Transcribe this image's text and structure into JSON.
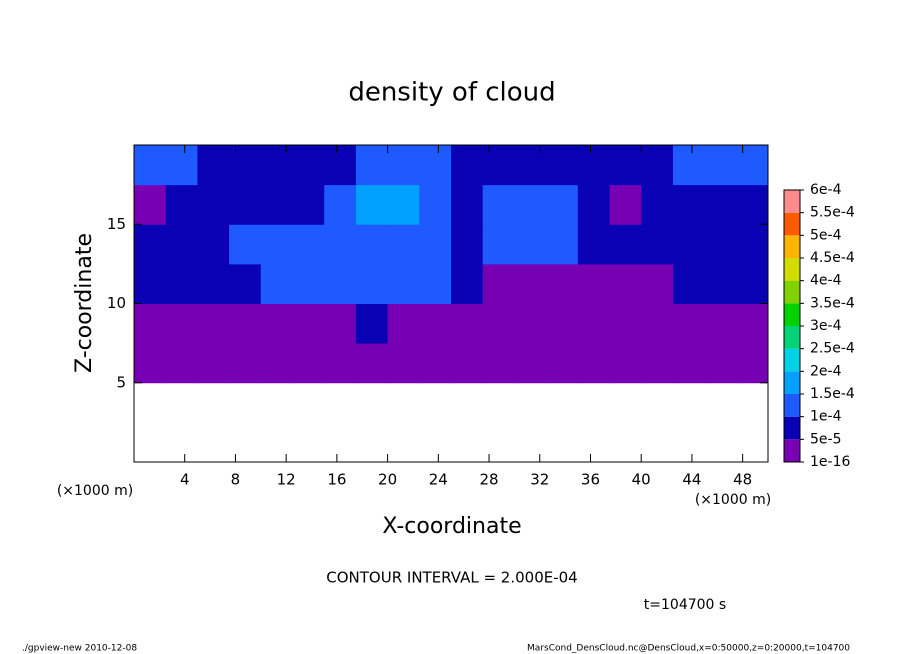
{
  "chart_data": {
    "type": "heatmap",
    "title": "density of cloud",
    "x_label": "X-coordinate",
    "y_label": "Z-coordinate",
    "x_unit": "(×1000 m)",
    "y_unit": "(×1000 m)",
    "xlim": [
      0,
      50
    ],
    "ylim": [
      0,
      20
    ],
    "xticks": [
      4,
      8,
      12,
      16,
      20,
      24,
      28,
      32,
      36,
      40,
      44,
      48
    ],
    "yticks": [
      5,
      10,
      15
    ],
    "x_bins": [
      0,
      2.5,
      5,
      7.5,
      10,
      12.5,
      15,
      17.5,
      20,
      22.5,
      25,
      27.5,
      30,
      32.5,
      35,
      37.5,
      40,
      42.5,
      45,
      47.5,
      50
    ],
    "y_bins": [
      0,
      2.5,
      5,
      7.5,
      10,
      12.5,
      15,
      17.5,
      20
    ],
    "z": [
      [
        null,
        null,
        null,
        null,
        null,
        null,
        null,
        null,
        null,
        null,
        null,
        null,
        null,
        null,
        null,
        null,
        null,
        null,
        null,
        null
      ],
      [
        null,
        null,
        null,
        null,
        null,
        null,
        null,
        null,
        null,
        null,
        null,
        null,
        null,
        null,
        null,
        null,
        null,
        null,
        null,
        null
      ],
      [
        3e-05,
        3e-05,
        3e-05,
        3e-05,
        3e-05,
        3e-05,
        3e-05,
        3e-05,
        3e-05,
        3e-05,
        3e-05,
        3e-05,
        3e-05,
        3e-05,
        3e-05,
        3e-05,
        3e-05,
        3e-05,
        3e-05,
        3e-05
      ],
      [
        3e-05,
        3e-05,
        3e-05,
        3e-05,
        3e-05,
        3e-05,
        3e-05,
        7e-05,
        3e-05,
        3e-05,
        3e-05,
        3e-05,
        3e-05,
        3e-05,
        3e-05,
        3e-05,
        3e-05,
        3e-05,
        3e-05,
        3e-05
      ],
      [
        7e-05,
        7e-05,
        7e-05,
        7e-05,
        0.00012,
        0.00012,
        0.00012,
        0.00012,
        0.00012,
        0.00012,
        7e-05,
        3e-05,
        3e-05,
        3e-05,
        3e-05,
        3e-05,
        3e-05,
        7e-05,
        7e-05,
        7e-05
      ],
      [
        7e-05,
        7e-05,
        7e-05,
        0.00012,
        0.00012,
        0.00012,
        0.00012,
        0.00012,
        0.00012,
        0.00012,
        7e-05,
        0.00012,
        0.00012,
        0.00012,
        7e-05,
        7e-05,
        7e-05,
        7e-05,
        7e-05,
        7e-05
      ],
      [
        3e-05,
        7e-05,
        7e-05,
        7e-05,
        7e-05,
        7e-05,
        0.00012,
        0.00016,
        0.00016,
        0.00012,
        7e-05,
        0.00012,
        0.00012,
        0.00012,
        7e-05,
        3e-05,
        7e-05,
        7e-05,
        7e-05,
        7e-05
      ],
      [
        0.00012,
        0.00012,
        7e-05,
        7e-05,
        7e-05,
        7e-05,
        7e-05,
        0.00012,
        0.00012,
        0.00012,
        7e-05,
        7e-05,
        7e-05,
        7e-05,
        7e-05,
        7e-05,
        7e-05,
        0.00012,
        0.00012,
        0.00012
      ]
    ],
    "colorbar": {
      "ticks": [
        {
          "value": 1e-16,
          "label": "1e-16"
        },
        {
          "value": 5e-05,
          "label": "5e-5"
        },
        {
          "value": 0.0001,
          "label": "1e-4"
        },
        {
          "value": 0.00015,
          "label": "1.5e-4"
        },
        {
          "value": 0.0002,
          "label": "2e-4"
        },
        {
          "value": 0.00025,
          "label": "2.5e-4"
        },
        {
          "value": 0.0003,
          "label": "3e-4"
        },
        {
          "value": 0.00035,
          "label": "3.5e-4"
        },
        {
          "value": 0.0004,
          "label": "4e-4"
        },
        {
          "value": 0.00045,
          "label": "4.5e-4"
        },
        {
          "value": 0.0005,
          "label": "5e-4"
        },
        {
          "value": 0.00055,
          "label": "5.5e-4"
        },
        {
          "value": 0.0006,
          "label": "6e-4"
        }
      ],
      "colors": [
        "#7800b4",
        "#0a00b4",
        "#1e5aff",
        "#00a0ff",
        "#00d2e6",
        "#00d278",
        "#00d200",
        "#82d200",
        "#d2dc00",
        "#ffb400",
        "#ff5a00",
        "#ff8c8c"
      ]
    },
    "contour_interval": "CONTOUR INTERVAL = 2.000E-04",
    "time_label": "t=104700 s",
    "footer_left": "./gpview-new  2010-12-08",
    "footer_right": "MarsCond_DensCloud.nc@DensCloud,x=0:50000,z=0:20000,t=104700"
  }
}
